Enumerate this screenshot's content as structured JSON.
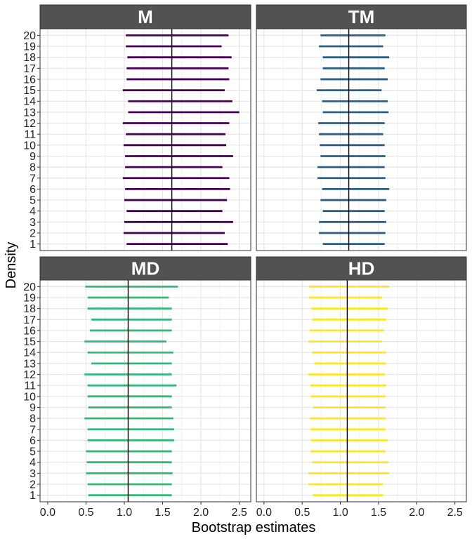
{
  "chart_data": {
    "type": "interval",
    "xlabel": "Bootstrap estimates",
    "ylabel": "Density",
    "xlim": [
      -0.1,
      2.65
    ],
    "xticks": [
      0.0,
      0.5,
      1.0,
      1.5,
      2.0,
      2.5
    ],
    "xtick_labels": [
      "0.0",
      "0.5",
      "1.0",
      "1.5",
      "2.0",
      "2.5"
    ],
    "categories": [
      "1",
      "2",
      "3",
      "4",
      "5",
      "6",
      "7",
      "8",
      "9",
      "10",
      "11",
      "12",
      "13",
      "14",
      "15",
      "16",
      "17",
      "18",
      "19",
      "20"
    ],
    "grid": true,
    "panels": [
      {
        "name": "M",
        "color": "#440154",
        "reference": 1.62,
        "intervals": [
          [
            1.03,
            2.35
          ],
          [
            0.99,
            2.31
          ],
          [
            1.0,
            2.42
          ],
          [
            1.03,
            2.28
          ],
          [
            1.0,
            2.34
          ],
          [
            1.01,
            2.38
          ],
          [
            0.98,
            2.37
          ],
          [
            1.01,
            2.28
          ],
          [
            1.01,
            2.42
          ],
          [
            0.99,
            2.33
          ],
          [
            1.02,
            2.32
          ],
          [
            0.98,
            2.37
          ],
          [
            1.05,
            2.5
          ],
          [
            1.05,
            2.41
          ],
          [
            0.98,
            2.31
          ],
          [
            1.03,
            2.37
          ],
          [
            1.03,
            2.36
          ],
          [
            1.04,
            2.4
          ],
          [
            1.02,
            2.27
          ],
          [
            1.02,
            2.36
          ]
        ]
      },
      {
        "name": "TM",
        "color": "#2D5E81",
        "reference": 1.11,
        "intervals": [
          [
            0.77,
            1.58
          ],
          [
            0.72,
            1.59
          ],
          [
            0.72,
            1.6
          ],
          [
            0.77,
            1.58
          ],
          [
            0.74,
            1.6
          ],
          [
            0.76,
            1.64
          ],
          [
            0.7,
            1.59
          ],
          [
            0.7,
            1.58
          ],
          [
            0.74,
            1.59
          ],
          [
            0.73,
            1.58
          ],
          [
            0.72,
            1.56
          ],
          [
            0.71,
            1.58
          ],
          [
            0.77,
            1.63
          ],
          [
            0.76,
            1.62
          ],
          [
            0.69,
            1.54
          ],
          [
            0.74,
            1.62
          ],
          [
            0.77,
            1.58
          ],
          [
            0.77,
            1.64
          ],
          [
            0.72,
            1.56
          ],
          [
            0.74,
            1.59
          ]
        ]
      },
      {
        "name": "MD",
        "color": "#35B779",
        "reference": 1.05,
        "intervals": [
          [
            0.53,
            1.62
          ],
          [
            0.52,
            1.62
          ],
          [
            0.5,
            1.63
          ],
          [
            0.51,
            1.62
          ],
          [
            0.5,
            1.62
          ],
          [
            0.52,
            1.65
          ],
          [
            0.52,
            1.65
          ],
          [
            0.48,
            1.64
          ],
          [
            0.53,
            1.62
          ],
          [
            0.52,
            1.62
          ],
          [
            0.52,
            1.68
          ],
          [
            0.48,
            1.62
          ],
          [
            0.57,
            1.62
          ],
          [
            0.52,
            1.64
          ],
          [
            0.48,
            1.55
          ],
          [
            0.55,
            1.62
          ],
          [
            0.57,
            1.62
          ],
          [
            0.52,
            1.62
          ],
          [
            0.52,
            1.58
          ],
          [
            0.49,
            1.7
          ]
        ]
      },
      {
        "name": "HD",
        "color": "#FDE725",
        "reference": 1.09,
        "intervals": [
          [
            0.64,
            1.56
          ],
          [
            0.58,
            1.56
          ],
          [
            0.58,
            1.64
          ],
          [
            0.63,
            1.63
          ],
          [
            0.61,
            1.59
          ],
          [
            0.62,
            1.62
          ],
          [
            0.61,
            1.59
          ],
          [
            0.6,
            1.59
          ],
          [
            0.64,
            1.59
          ],
          [
            0.61,
            1.59
          ],
          [
            0.61,
            1.6
          ],
          [
            0.58,
            1.58
          ],
          [
            0.66,
            1.6
          ],
          [
            0.63,
            1.6
          ],
          [
            0.58,
            1.55
          ],
          [
            0.6,
            1.57
          ],
          [
            0.63,
            1.6
          ],
          [
            0.62,
            1.62
          ],
          [
            0.59,
            1.55
          ],
          [
            0.59,
            1.64
          ]
        ]
      }
    ]
  }
}
